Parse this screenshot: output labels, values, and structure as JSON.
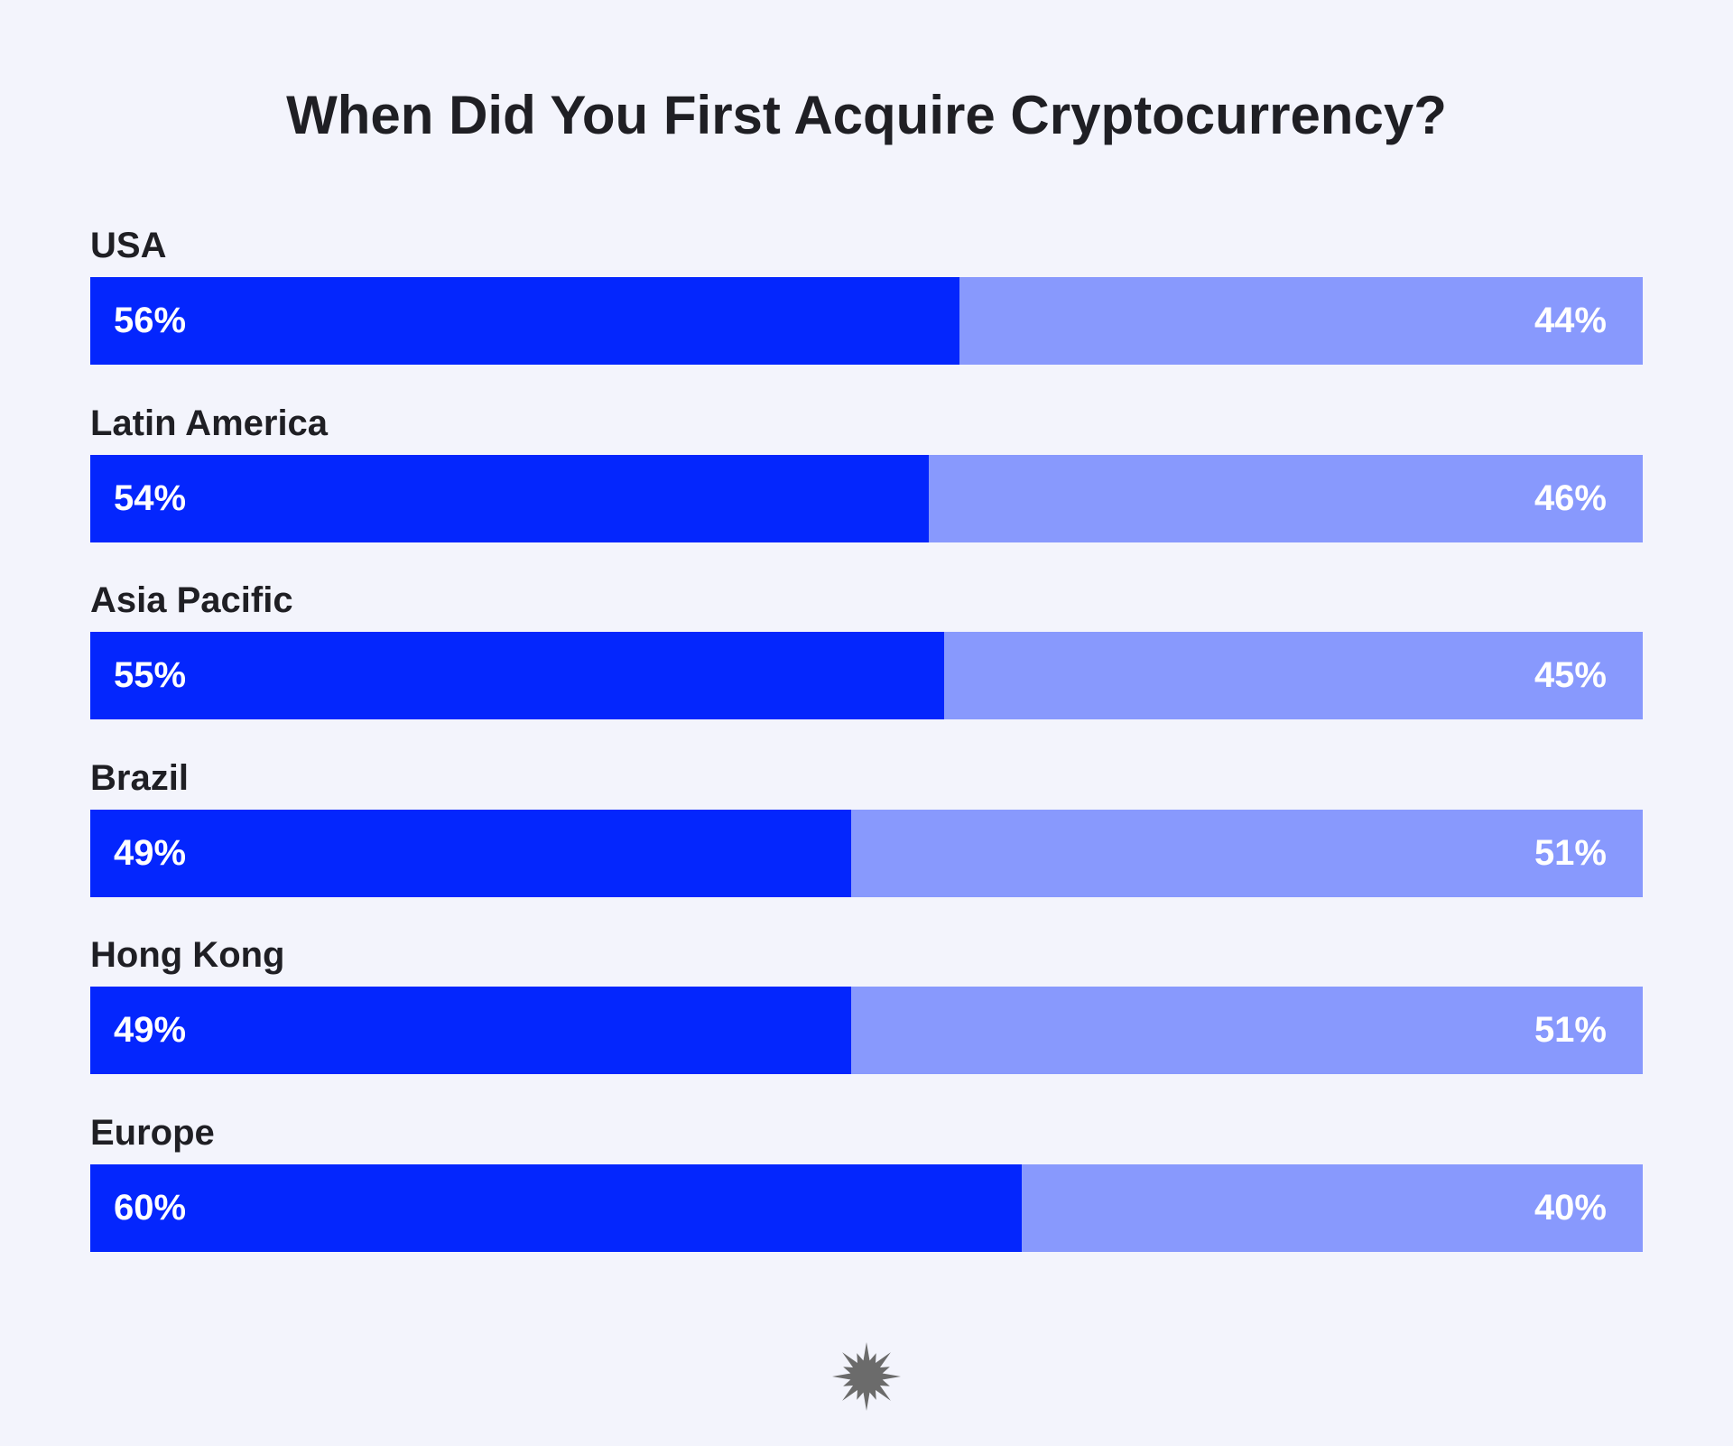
{
  "chart_data": {
    "type": "bar",
    "orientation": "horizontal",
    "stacked": true,
    "title": "When Did You First Acquire Cryptocurrency?",
    "categories": [
      "USA",
      "Latin America",
      "Asia Pacific",
      "Brazil",
      "Hong Kong",
      "Europe"
    ],
    "series": [
      {
        "values": [
          56,
          54,
          55,
          49,
          49,
          60
        ],
        "labels": [
          "56%",
          "54%",
          "55%",
          "49%",
          "49%",
          "60%"
        ],
        "color": "#0426fd"
      },
      {
        "values": [
          44,
          46,
          45,
          51,
          51,
          40
        ],
        "labels": [
          "44%",
          "46%",
          "45%",
          "51%",
          "51%",
          "40%"
        ],
        "color": "#8899fd"
      }
    ],
    "xlim": [
      0,
      100
    ],
    "grid": false,
    "legend": "none"
  },
  "colors": {
    "background": "#f3f4fc",
    "text": "#1f1f24",
    "value_text": "#ffffff",
    "logo": "#6b6b6b"
  },
  "logo_icon": "starburst-logo-icon"
}
